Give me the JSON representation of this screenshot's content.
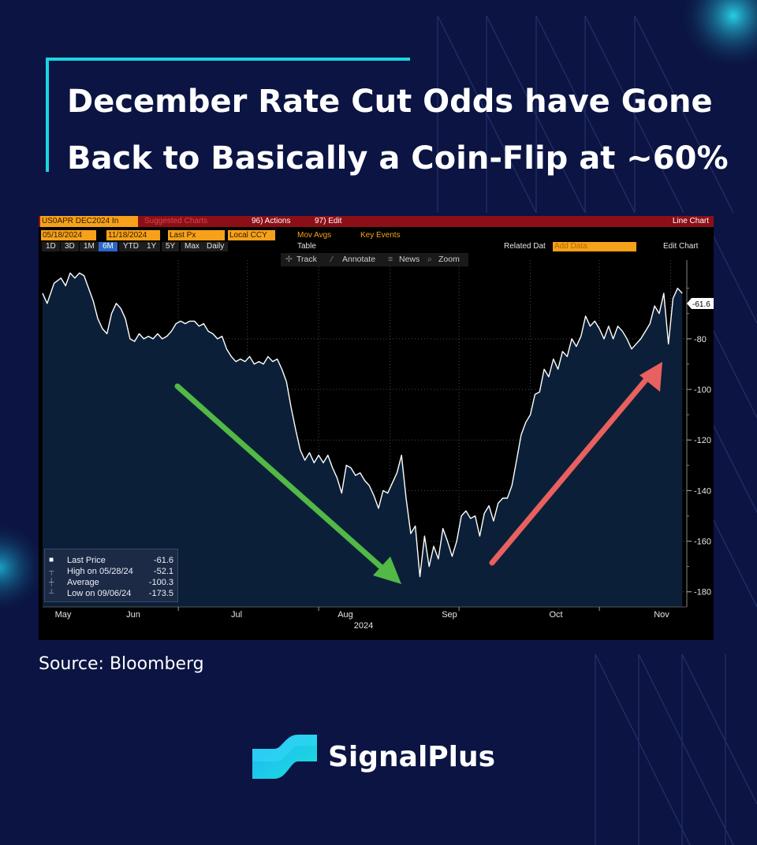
{
  "headline": {
    "line1": "December Rate Cut Odds have Gone",
    "line2": "Back to Basically a Coin-Flip at ~60%"
  },
  "source": "Source: Bloomberg",
  "brand": {
    "name": "SignalPlus",
    "icon": "signalplus-wave-logo"
  },
  "colors": {
    "background": "#0b1442",
    "accent": "#19d7df",
    "down_arrow": "#52b846",
    "up_arrow": "#e8605f",
    "plot_fill": "#0b2038",
    "line": "#ffffff"
  },
  "terminal": {
    "ticker": "US0APR DEC2024 In",
    "suggested": "Suggested Charts",
    "actions": "96) Actions",
    "edit": "97) Edit",
    "chart_kind": "Line Chart",
    "date_from": "05/18/2024",
    "date_to": "11/18/2024",
    "field": "Last Px",
    "currency": "Local CCY",
    "mov_avgs": "Mov Avgs",
    "key_events": "Key Events",
    "ranges": [
      "1D",
      "3D",
      "1M",
      "6M",
      "YTD",
      "1Y",
      "5Y",
      "Max"
    ],
    "active_range": "6M",
    "frequency": "Daily",
    "table": "Table",
    "related": "Related Dat",
    "add_data": "Add Data",
    "edit_chart": "Edit Chart",
    "tools": {
      "track": "Track",
      "annotate": "Annotate",
      "news": "News",
      "zoom": "Zoom"
    },
    "legend": {
      "last_label": "Last Price",
      "last_value": "-61.6",
      "high_label": "High on 05/28/24",
      "high_value": "-52.1",
      "avg_label": "Average",
      "avg_value": "-100.3",
      "low_label": "Low on 09/06/24",
      "low_value": "-173.5"
    },
    "current_value_tag": "-61.6"
  },
  "chart_data": {
    "type": "area",
    "ylim": [
      -186,
      -52
    ],
    "yticks": [
      -80,
      -100,
      -120,
      -140,
      -160,
      -180
    ],
    "x_start": "2024-05-18",
    "x_end": "2024-11-18",
    "month_labels": [
      "May",
      "Jun",
      "Jul",
      "Aug",
      "Sep",
      "Oct",
      "Nov"
    ],
    "year_label": "2024",
    "series": [
      {
        "values": [
          [
            0,
            -62
          ],
          [
            2,
            -66
          ],
          [
            5,
            -58
          ],
          [
            8,
            -56
          ],
          [
            10,
            -59
          ],
          [
            12,
            -54
          ],
          [
            14,
            -56
          ],
          [
            16,
            -54
          ],
          [
            18,
            -55
          ],
          [
            20,
            -60
          ],
          [
            22,
            -65
          ],
          [
            24,
            -72
          ],
          [
            26,
            -76
          ],
          [
            28,
            -78
          ],
          [
            30,
            -70
          ],
          [
            32,
            -66
          ],
          [
            34,
            -68
          ],
          [
            36,
            -72
          ],
          [
            38,
            -80
          ],
          [
            40,
            -81
          ],
          [
            42,
            -78
          ],
          [
            44,
            -80
          ],
          [
            46,
            -79
          ],
          [
            48,
            -80
          ],
          [
            50,
            -78
          ],
          [
            52,
            -80
          ],
          [
            54,
            -79
          ],
          [
            56,
            -77
          ],
          [
            58,
            -74
          ],
          [
            60,
            -73
          ],
          [
            62,
            -74
          ],
          [
            64,
            -73
          ],
          [
            66,
            -73
          ],
          [
            68,
            -75
          ],
          [
            70,
            -74
          ],
          [
            72,
            -77
          ],
          [
            74,
            -78
          ],
          [
            76,
            -80
          ],
          [
            78,
            -79
          ],
          [
            80,
            -84
          ],
          [
            82,
            -87
          ],
          [
            84,
            -89
          ],
          [
            86,
            -88
          ],
          [
            88,
            -89
          ],
          [
            90,
            -87
          ],
          [
            92,
            -90
          ],
          [
            94,
            -89
          ],
          [
            96,
            -90
          ],
          [
            98,
            -87
          ],
          [
            100,
            -89
          ],
          [
            102,
            -88
          ],
          [
            104,
            -92
          ],
          [
            106,
            -97
          ],
          [
            108,
            -107
          ],
          [
            110,
            -116
          ],
          [
            112,
            -124
          ],
          [
            114,
            -128
          ],
          [
            116,
            -125
          ],
          [
            118,
            -129
          ],
          [
            120,
            -126
          ],
          [
            122,
            -129
          ],
          [
            124,
            -126
          ],
          [
            126,
            -131
          ],
          [
            128,
            -135
          ],
          [
            130,
            -141
          ],
          [
            132,
            -130
          ],
          [
            134,
            -131
          ],
          [
            136,
            -134
          ],
          [
            138,
            -133
          ],
          [
            140,
            -136
          ],
          [
            142,
            -138
          ],
          [
            144,
            -142
          ],
          [
            146,
            -147
          ],
          [
            148,
            -140
          ],
          [
            150,
            -141
          ],
          [
            152,
            -137
          ],
          [
            154,
            -133
          ],
          [
            156,
            -126
          ],
          [
            158,
            -143
          ],
          [
            160,
            -157
          ],
          [
            162,
            -154
          ],
          [
            164,
            -174
          ],
          [
            166,
            -158
          ],
          [
            168,
            -170
          ],
          [
            170,
            -162
          ],
          [
            172,
            -167
          ],
          [
            174,
            -155
          ],
          [
            176,
            -160
          ],
          [
            178,
            -166
          ],
          [
            180,
            -160
          ],
          [
            182,
            -150
          ],
          [
            184,
            -148
          ],
          [
            186,
            -151
          ],
          [
            188,
            -150
          ],
          [
            190,
            -158
          ],
          [
            192,
            -149
          ],
          [
            194,
            -146
          ],
          [
            196,
            -152
          ],
          [
            198,
            -145
          ],
          [
            200,
            -143
          ],
          [
            202,
            -143
          ],
          [
            204,
            -138
          ],
          [
            206,
            -128
          ],
          [
            208,
            -118
          ],
          [
            210,
            -113
          ],
          [
            212,
            -110
          ],
          [
            214,
            -102
          ],
          [
            216,
            -101
          ],
          [
            218,
            -92
          ],
          [
            220,
            -95
          ],
          [
            222,
            -88
          ],
          [
            224,
            -92
          ],
          [
            226,
            -85
          ],
          [
            228,
            -87
          ],
          [
            230,
            -80
          ],
          [
            232,
            -83
          ],
          [
            234,
            -79
          ],
          [
            236,
            -71
          ],
          [
            238,
            -75
          ],
          [
            240,
            -73
          ],
          [
            242,
            -76
          ],
          [
            244,
            -80
          ],
          [
            246,
            -75
          ],
          [
            248,
            -80
          ],
          [
            250,
            -75
          ],
          [
            252,
            -77
          ],
          [
            254,
            -80
          ],
          [
            256,
            -84
          ],
          [
            258,
            -82
          ],
          [
            260,
            -80
          ],
          [
            262,
            -77
          ],
          [
            264,
            -74
          ],
          [
            266,
            -67
          ],
          [
            268,
            -70
          ],
          [
            270,
            -62
          ],
          [
            272,
            -82
          ],
          [
            274,
            -64
          ],
          [
            276,
            -60
          ],
          [
            278,
            -62
          ]
        ]
      }
    ]
  }
}
